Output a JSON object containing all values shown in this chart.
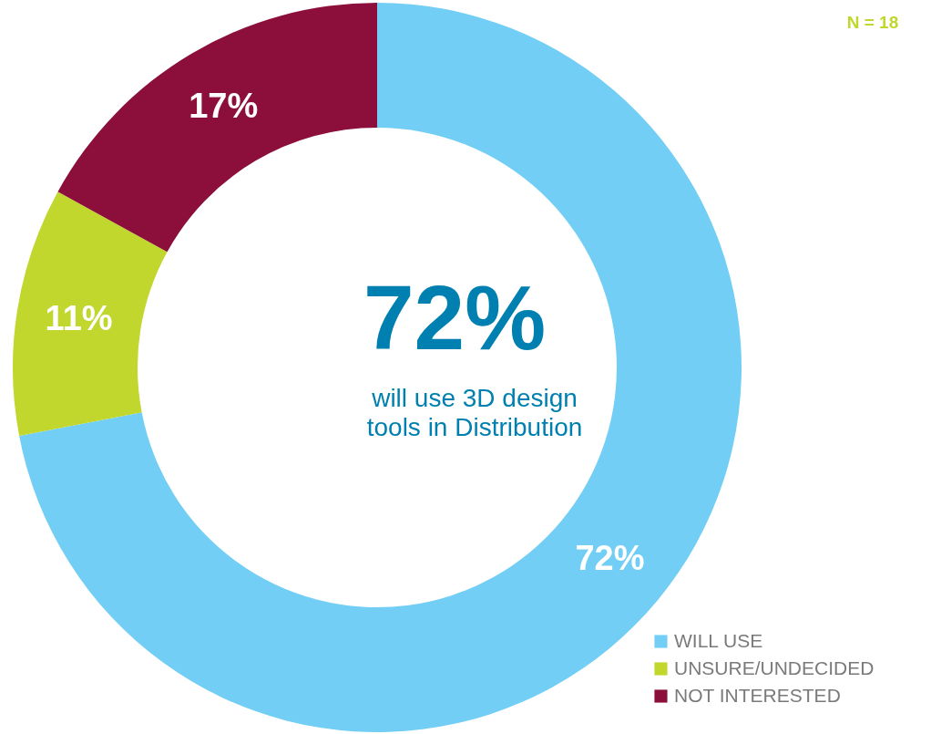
{
  "chart_data": {
    "type": "donut",
    "categories": [
      "WILL USE",
      "UNSURE/UNDECIDED",
      "NOT INTERESTED"
    ],
    "values": [
      72,
      11,
      17
    ],
    "colors": [
      "#72cef4",
      "#c1d72e",
      "#8c0e3a"
    ],
    "value_labels": [
      "72%",
      "11%",
      "17%"
    ],
    "legend": "bottom right",
    "annotations": [
      "72%",
      "will use 3D design tools in Distribution",
      "N = 18"
    ]
  }
}
